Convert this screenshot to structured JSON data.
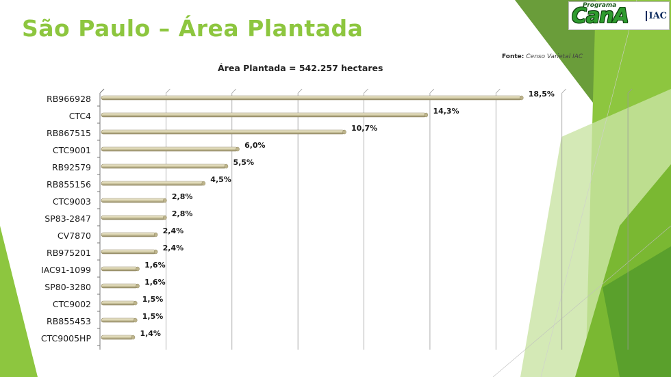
{
  "slide": {
    "title": "São Paulo – Área Plantada",
    "source_label": "Fonte:",
    "source_value": "Censo Varietal IAC"
  },
  "logo": {
    "top_text": "Programa",
    "word": "CanA",
    "iac": "IAC"
  },
  "colors": {
    "title": "#8dc63f",
    "bar": "#d8d1ac",
    "bar_dark": "#8f8660",
    "bar_light": "#f1ecd6",
    "gridline": "#9a9a9a",
    "decor_green": "#7ab832",
    "decor_light_green": "#c9e3a4"
  },
  "chart_data": {
    "type": "bar",
    "orientation": "horizontal",
    "title": "Área Plantada = 542.257 hectares",
    "categories": [
      "RB966928",
      "CTC4",
      "RB867515",
      "CTC9001",
      "RB92579",
      "RB855156",
      "CTC9003",
      "SP83-2847",
      "CV7870",
      "RB975201",
      "IAC91-1099",
      "SP80-3280",
      "CTC9002",
      "RB855453",
      "CTC9005HP"
    ],
    "values": [
      18.5,
      14.3,
      10.7,
      6.0,
      5.5,
      4.5,
      2.8,
      2.8,
      2.4,
      2.4,
      1.6,
      1.6,
      1.5,
      1.5,
      1.4
    ],
    "data_labels": [
      "18,5%",
      "14,3%",
      "10,7%",
      "6,0%",
      "5,5%",
      "4,5%",
      "2,8%",
      "2,8%",
      "2,4%",
      "2,4%",
      "1,6%",
      "1,6%",
      "1,5%",
      "1,5%",
      "1,4%"
    ],
    "xlim": [
      0,
      20
    ],
    "x_gridlines": 8,
    "unit": "%",
    "grid": true,
    "legend": "none"
  }
}
